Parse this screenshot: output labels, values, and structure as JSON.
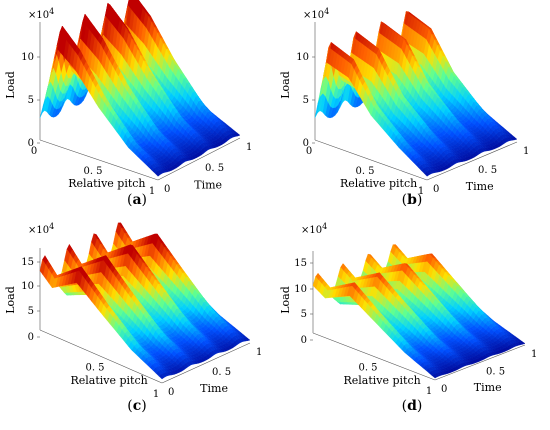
{
  "chart_data": [
    {
      "type": "surface",
      "panel_label": "(a)",
      "caption_letter": "a",
      "zlabel": "Load",
      "xlabel": "Relative pitch",
      "ylabel": "Time",
      "z_multiplier": "×10",
      "z_multiplier_exp": "4",
      "zticks": [
        "0",
        "5",
        "10"
      ],
      "xticks": [
        "0",
        "0. 5",
        "1"
      ],
      "yticks": [
        "0",
        "0. 5",
        "1"
      ],
      "xlim": [
        0,
        1
      ],
      "ylim": [
        0,
        1
      ],
      "zlim": [
        0,
        13
      ],
      "colormap": [
        "#00008f",
        "#0050ff",
        "#00d0ff",
        "#60ff90",
        "#ffe000",
        "#ff6000",
        "#c00000"
      ],
      "load_profile": [
        [
          0,
          3
        ],
        [
          0.15,
          13
        ],
        [
          0.3,
          11
        ],
        [
          0.5,
          7
        ],
        [
          0.75,
          3
        ],
        [
          1,
          0.5
        ]
      ],
      "time_peaks": [
        0.05,
        0.33,
        0.62,
        0.9
      ]
    },
    {
      "type": "surface",
      "panel_label": "(b)",
      "caption_letter": "b",
      "zlabel": "Load",
      "xlabel": "Relative pitch",
      "ylabel": "Time",
      "z_multiplier": "×10",
      "z_multiplier_exp": "4",
      "zticks": [
        "0",
        "5",
        "10"
      ],
      "xticks": [
        "0",
        "0. 5",
        "1"
      ],
      "yticks": [
        "0",
        "0. 5",
        "1"
      ],
      "xlim": [
        0,
        1
      ],
      "ylim": [
        0,
        1
      ],
      "zlim": [
        0,
        13
      ],
      "colormap": [
        "#00008f",
        "#0050ff",
        "#00d0ff",
        "#60ff90",
        "#ffe000",
        "#ff6000",
        "#c00000"
      ],
      "load_profile": [
        [
          0,
          3
        ],
        [
          0.1,
          11
        ],
        [
          0.3,
          10
        ],
        [
          0.5,
          6
        ],
        [
          0.75,
          3
        ],
        [
          1,
          0.5
        ]
      ],
      "time_peaks": [
        0.05,
        0.33,
        0.62,
        0.9
      ]
    },
    {
      "type": "surface",
      "panel_label": "(c)",
      "caption_letter": "c",
      "zlabel": "Load",
      "xlabel": "Relative pitch",
      "ylabel": "Time",
      "z_multiplier": "×10",
      "z_multiplier_exp": "4",
      "zticks": [
        "0",
        "5",
        "10",
        "15"
      ],
      "xticks": [
        "0. 5",
        "1"
      ],
      "yticks": [
        "0",
        "0. 5",
        "1"
      ],
      "xlim": [
        0,
        1
      ],
      "ylim": [
        0,
        1
      ],
      "zlim": [
        0,
        17
      ],
      "colormap": [
        "#00008f",
        "#0050ff",
        "#00d0ff",
        "#60ff90",
        "#ffe000",
        "#ff6000",
        "#c00000"
      ],
      "load_profile": [
        [
          0,
          15
        ],
        [
          0.1,
          12
        ],
        [
          0.3,
          16
        ],
        [
          0.5,
          11
        ],
        [
          0.75,
          5
        ],
        [
          1,
          1
        ]
      ],
      "time_peaks": [
        0.05,
        0.33,
        0.62,
        0.9
      ]
    },
    {
      "type": "surface",
      "panel_label": "(d)",
      "caption_letter": "d",
      "zlabel": "Load",
      "xlabel": "Relative pitch",
      "ylabel": "Time",
      "z_multiplier": "×10",
      "z_multiplier_exp": "4",
      "zticks": [
        "0",
        "5",
        "10",
        "15"
      ],
      "xticks": [
        "0. 5",
        "1"
      ],
      "yticks": [
        "0",
        "0. 5",
        "1"
      ],
      "xlim": [
        0,
        1
      ],
      "ylim": [
        0,
        1
      ],
      "zlim": [
        0,
        17
      ],
      "colormap": [
        "#00008f",
        "#0050ff",
        "#00d0ff",
        "#60ff90",
        "#ffe000",
        "#ff6000",
        "#c00000"
      ],
      "load_profile": [
        [
          0,
          12
        ],
        [
          0.1,
          10
        ],
        [
          0.3,
          13
        ],
        [
          0.5,
          9
        ],
        [
          0.75,
          4
        ],
        [
          1,
          0.5
        ]
      ],
      "time_peaks": [
        0.05,
        0.33,
        0.62,
        0.9
      ]
    }
  ]
}
